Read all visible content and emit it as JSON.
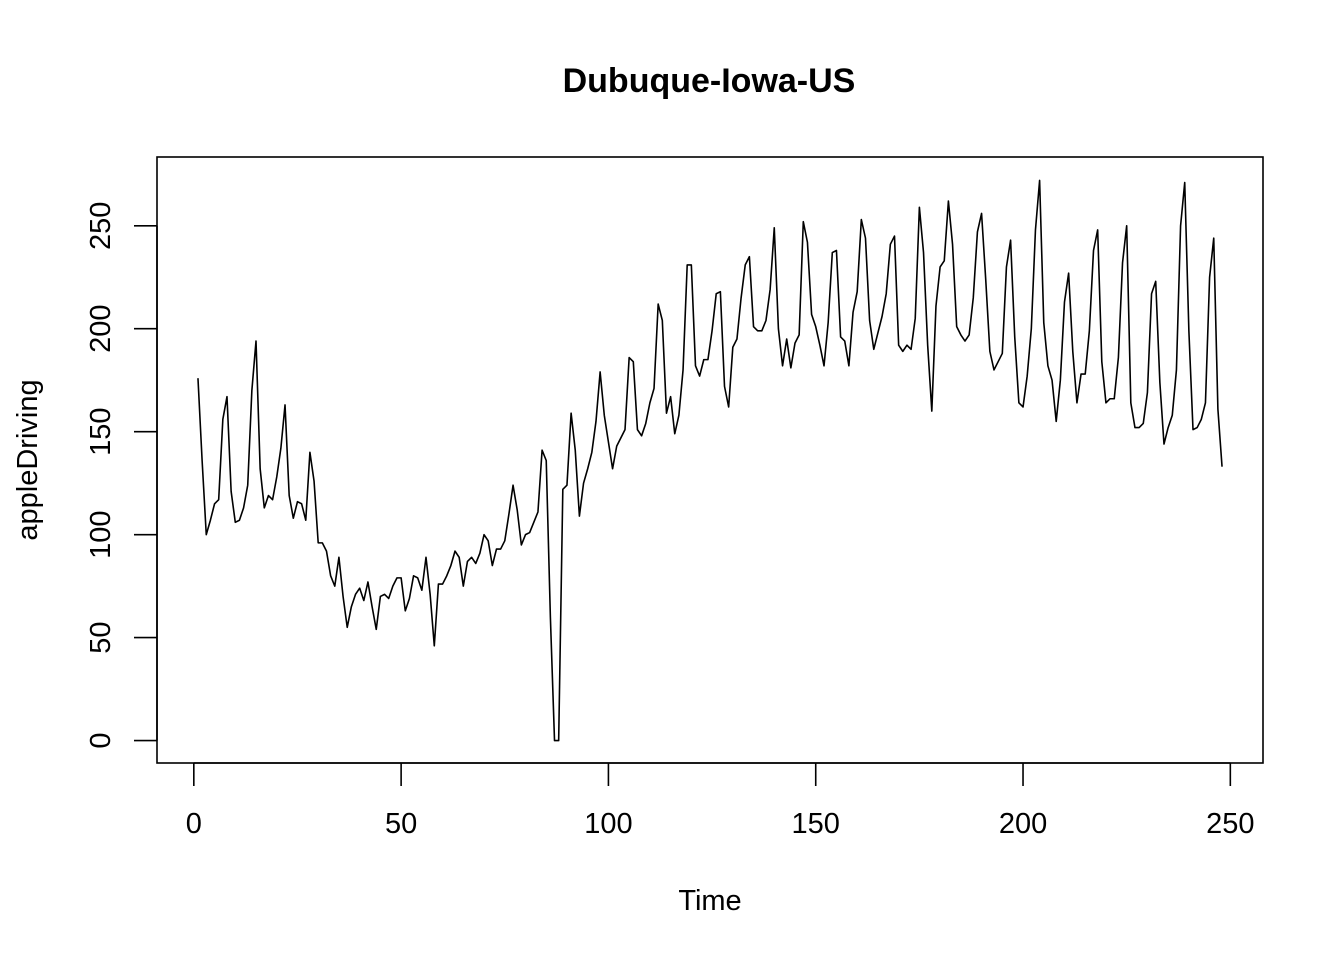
{
  "chart_data": {
    "type": "line",
    "title": "Dubuque-Iowa-US",
    "xlabel": "Time",
    "ylabel": "appleDriving",
    "xlim": [
      -8.88,
      257.88
    ],
    "ylim": [
      -10.9,
      283.4
    ],
    "x_ticks": [
      0,
      50,
      100,
      150,
      200,
      250
    ],
    "y_ticks": [
      0,
      50,
      100,
      150,
      200,
      250
    ],
    "grid": false,
    "legend": "none",
    "series": [
      {
        "color": "#000000",
        "x_start": 1,
        "values": [
          176,
          136,
          100,
          107,
          115,
          117,
          156,
          167,
          121,
          106,
          107,
          113,
          124,
          170,
          194,
          132,
          113,
          119,
          117,
          128,
          142,
          163,
          119,
          108,
          116,
          115,
          107,
          140,
          126,
          96,
          96,
          92,
          80,
          75,
          89,
          70,
          55,
          65,
          71,
          74,
          68,
          77,
          65,
          54,
          70,
          71,
          69,
          75,
          79,
          79,
          63,
          69,
          80,
          79,
          73,
          89,
          71,
          46,
          76,
          76,
          80,
          85,
          92,
          89,
          75,
          87,
          89,
          86,
          91,
          100,
          97,
          85,
          93,
          93,
          97,
          110,
          124,
          112,
          95,
          100,
          101,
          106,
          111,
          141,
          136,
          60,
          0,
          0,
          122,
          124,
          159,
          141,
          109,
          125,
          132,
          140,
          155,
          179,
          158,
          145,
          132,
          143,
          147,
          151,
          186,
          184,
          151,
          148,
          154,
          164,
          171,
          212,
          204,
          159,
          167,
          149,
          158,
          180,
          231,
          231,
          182,
          177,
          185,
          185,
          199,
          217,
          218,
          172,
          162,
          191,
          195,
          215,
          231,
          235,
          201,
          199,
          199,
          204,
          219,
          249,
          200,
          182,
          195,
          181,
          193,
          197,
          252,
          242,
          207,
          201,
          192,
          182,
          203,
          237,
          238,
          196,
          194,
          182,
          208,
          218,
          253,
          244,
          204,
          190,
          198,
          206,
          217,
          241,
          245,
          192,
          189,
          192,
          190,
          205,
          259,
          237,
          192,
          160,
          211,
          230,
          233,
          262,
          241,
          201,
          197,
          194,
          197,
          215,
          247,
          256,
          224,
          189,
          180,
          184,
          188,
          230,
          243,
          196,
          164,
          162,
          177,
          200,
          248,
          272,
          203,
          182,
          175,
          155,
          175,
          213,
          227,
          189,
          164,
          178,
          178,
          199,
          238,
          248,
          184,
          164,
          166,
          166,
          186,
          232,
          250,
          164,
          152,
          152,
          154,
          169,
          217,
          223,
          174,
          144,
          152,
          158,
          180,
          250,
          271,
          199,
          151,
          152,
          156,
          164,
          225,
          244,
          161,
          133
        ]
      }
    ]
  }
}
